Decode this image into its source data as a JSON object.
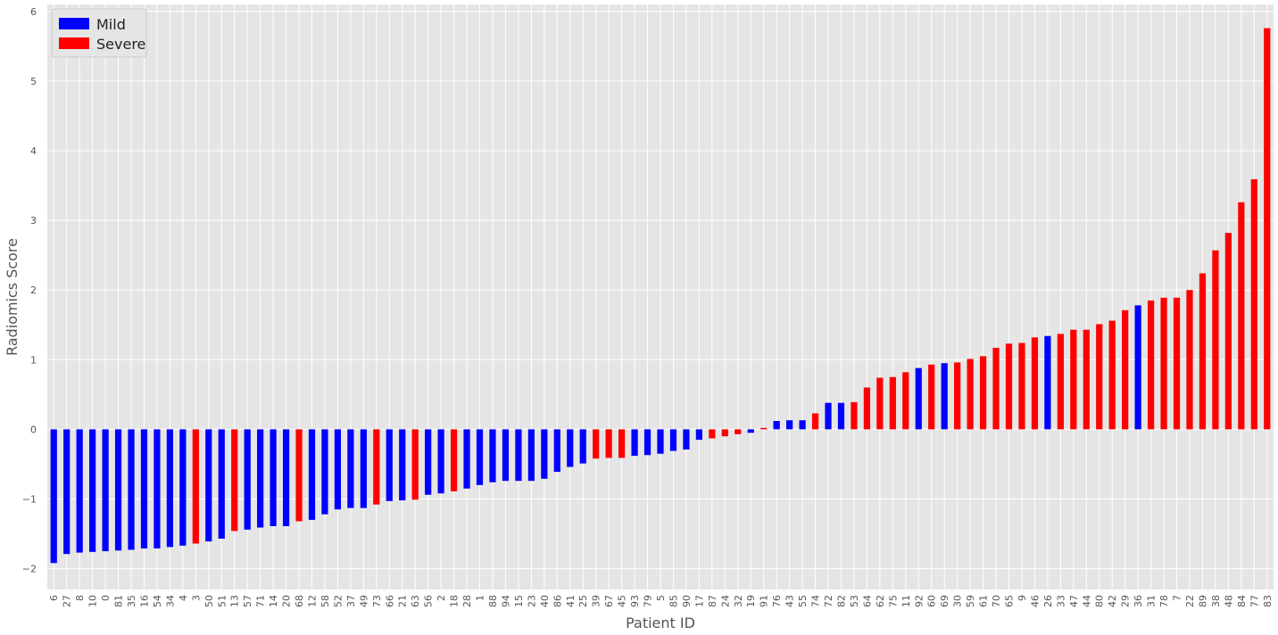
{
  "chart_data": {
    "type": "bar",
    "xlabel": "Patient ID",
    "ylabel": "Radiomics Score",
    "ylim": [
      -2.3,
      6.1
    ],
    "yticks": [
      -2,
      -1,
      0,
      1,
      2,
      3,
      4,
      5,
      6
    ],
    "grid": true,
    "legend_position": "top-left",
    "colors": {
      "Mild": "#0000ff",
      "Severe": "#ff0000",
      "plot_background": "#e5e5e5",
      "grid": "#ffffff"
    },
    "legend": [
      {
        "label": "Mild",
        "color": "#0000ff"
      },
      {
        "label": "Severe",
        "color": "#ff0000"
      }
    ],
    "categories": [
      "6",
      "27",
      "8",
      "10",
      "0",
      "81",
      "35",
      "16",
      "54",
      "34",
      "4",
      "3",
      "50",
      "51",
      "13",
      "57",
      "71",
      "14",
      "20",
      "68",
      "12",
      "58",
      "52",
      "37",
      "49",
      "73",
      "66",
      "21",
      "63",
      "56",
      "2",
      "18",
      "28",
      "1",
      "88",
      "94",
      "15",
      "23",
      "40",
      "86",
      "41",
      "25",
      "39",
      "67",
      "45",
      "93",
      "79",
      "5",
      "85",
      "90",
      "17",
      "87",
      "24",
      "32",
      "19",
      "91",
      "76",
      "43",
      "55",
      "74",
      "72",
      "82",
      "53",
      "64",
      "62",
      "75",
      "11",
      "92",
      "60",
      "69",
      "30",
      "59",
      "61",
      "70",
      "65",
      "9",
      "46",
      "26",
      "33",
      "47",
      "44",
      "80",
      "42",
      "29",
      "36",
      "31",
      "78",
      "7",
      "22",
      "89",
      "38",
      "48",
      "84",
      "77",
      "83"
    ],
    "values": [
      -1.92,
      -1.79,
      -1.77,
      -1.76,
      -1.75,
      -1.74,
      -1.73,
      -1.71,
      -1.71,
      -1.69,
      -1.67,
      -1.64,
      -1.61,
      -1.57,
      -1.46,
      -1.44,
      -1.41,
      -1.39,
      -1.39,
      -1.32,
      -1.3,
      -1.22,
      -1.15,
      -1.13,
      -1.13,
      -1.08,
      -1.03,
      -1.02,
      -1.01,
      -0.94,
      -0.92,
      -0.89,
      -0.85,
      -0.8,
      -0.76,
      -0.74,
      -0.74,
      -0.74,
      -0.71,
      -0.61,
      -0.54,
      -0.49,
      -0.42,
      -0.41,
      -0.41,
      -0.38,
      -0.37,
      -0.35,
      -0.31,
      -0.29,
      -0.15,
      -0.13,
      -0.1,
      -0.07,
      -0.05,
      0.02,
      0.12,
      0.13,
      0.13,
      0.23,
      0.38,
      0.38,
      0.39,
      0.6,
      0.74,
      0.75,
      0.82,
      0.88,
      0.93,
      0.95,
      0.96,
      1.01,
      1.05,
      1.17,
      1.23,
      1.24,
      1.32,
      1.34,
      1.37,
      1.43,
      1.43,
      1.51,
      1.56,
      1.71,
      1.78,
      1.85,
      1.89,
      1.89,
      2.0,
      2.24,
      2.57,
      2.82,
      3.26,
      3.59,
      5.76
    ],
    "group": [
      "Mild",
      "Mild",
      "Mild",
      "Mild",
      "Mild",
      "Mild",
      "Mild",
      "Mild",
      "Mild",
      "Mild",
      "Mild",
      "Severe",
      "Mild",
      "Mild",
      "Severe",
      "Mild",
      "Mild",
      "Mild",
      "Mild",
      "Severe",
      "Mild",
      "Mild",
      "Mild",
      "Mild",
      "Mild",
      "Severe",
      "Mild",
      "Mild",
      "Severe",
      "Mild",
      "Mild",
      "Severe",
      "Mild",
      "Mild",
      "Mild",
      "Mild",
      "Mild",
      "Mild",
      "Mild",
      "Mild",
      "Mild",
      "Mild",
      "Severe",
      "Severe",
      "Severe",
      "Mild",
      "Mild",
      "Mild",
      "Mild",
      "Mild",
      "Mild",
      "Severe",
      "Severe",
      "Severe",
      "Mild",
      "Severe",
      "Mild",
      "Mild",
      "Mild",
      "Severe",
      "Mild",
      "Mild",
      "Severe",
      "Severe",
      "Severe",
      "Severe",
      "Severe",
      "Mild",
      "Severe",
      "Mild",
      "Severe",
      "Severe",
      "Severe",
      "Severe",
      "Severe",
      "Severe",
      "Severe",
      "Mild",
      "Severe",
      "Severe",
      "Severe",
      "Severe",
      "Severe",
      "Severe",
      "Mild",
      "Severe",
      "Severe",
      "Severe",
      "Severe",
      "Severe",
      "Severe",
      "Severe",
      "Severe",
      "Severe",
      "Severe"
    ]
  }
}
